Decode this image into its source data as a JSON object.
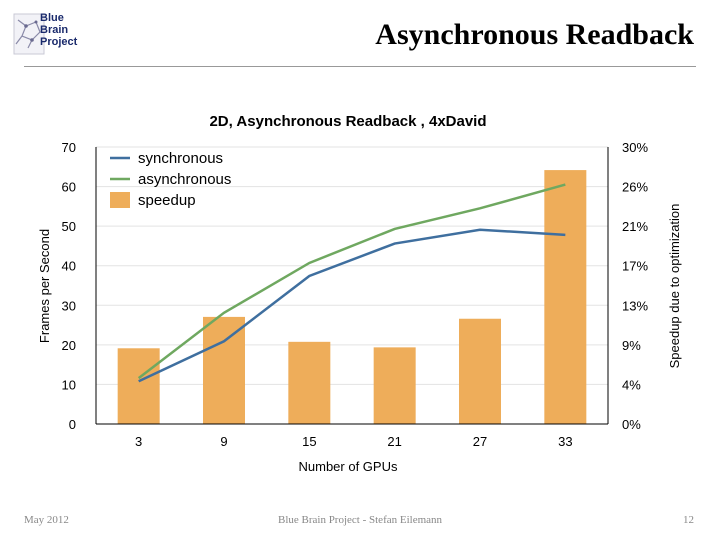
{
  "header": {
    "logo_lines": [
      "Blue",
      "Brain",
      "Project"
    ],
    "title": "Asynchronous Readback"
  },
  "footer": {
    "left": "May 2012",
    "center": "Blue Brain Project - Stefan Eilemann",
    "right": "12"
  },
  "colors": {
    "synchronous": "#3f6f9f",
    "asynchronous": "#6fa860",
    "speedup": "#eead5a",
    "axis": "#000000"
  },
  "chart_data": {
    "type": "bar",
    "title": "2D, Asynchronous Readback , 4xDavid",
    "xlabel": "Number of GPUs",
    "ylabel": "Frames per Second",
    "y2label": "Speedup due to optimization",
    "categories": [
      "3",
      "9",
      "15",
      "21",
      "27",
      "33"
    ],
    "ylim": [
      0,
      70
    ],
    "yticks": [
      "0",
      "10",
      "20",
      "30",
      "40",
      "50",
      "60",
      "70"
    ],
    "y2ticks": [
      "0%",
      "4%",
      "9%",
      "13%",
      "17%",
      "21%",
      "26%",
      "30%"
    ],
    "legend_position": "top-left",
    "series": [
      {
        "name": "synchronous",
        "type": "line",
        "axis": "left",
        "values": [
          10.8,
          20.9,
          37.4,
          45.6,
          49.1,
          47.8
        ]
      },
      {
        "name": "asynchronous",
        "type": "line",
        "axis": "left",
        "values": [
          11.6,
          28.1,
          40.7,
          49.3,
          54.5,
          60.5
        ]
      },
      {
        "name": "speedup",
        "type": "bar",
        "axis": "right",
        "values": [
          8.2,
          11.6,
          8.9,
          8.3,
          11.4,
          27.5
        ]
      }
    ]
  }
}
